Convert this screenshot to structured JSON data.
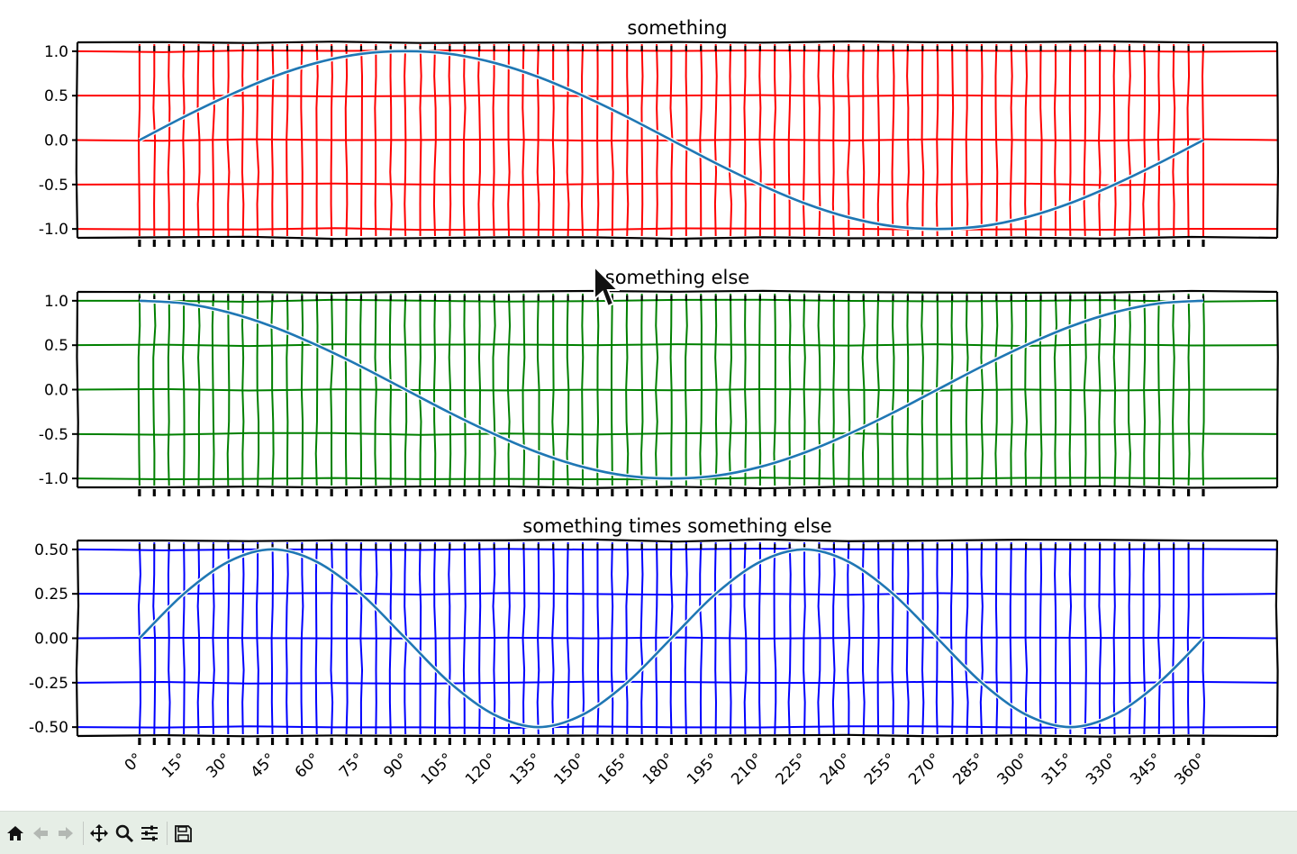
{
  "chart_data": [
    {
      "type": "line",
      "title": "something",
      "x_unit": "degrees",
      "xlim": [
        -21,
        385
      ],
      "ylim": [
        -1.1,
        1.1
      ],
      "yticks": [
        1.0,
        0.5,
        0.0,
        -0.5,
        -1.0
      ],
      "ytick_labels": [
        "1.0",
        "0.5",
        "0.0",
        "-0.5",
        "-1.0"
      ],
      "grid": true,
      "grid_color": "#ff0000",
      "grid_x_step": 5,
      "x_minor_ticks": [
        0,
        5,
        10,
        15,
        20,
        25,
        30,
        35,
        40,
        45,
        50,
        55,
        60,
        65,
        70,
        75,
        80,
        85,
        90,
        95,
        100,
        105,
        110,
        115,
        120,
        125,
        130,
        135,
        140,
        145,
        150,
        155,
        160,
        165,
        170,
        175,
        180,
        185,
        190,
        195,
        200,
        205,
        210,
        215,
        220,
        225,
        230,
        235,
        240,
        245,
        250,
        255,
        260,
        265,
        270,
        275,
        280,
        285,
        290,
        295,
        300,
        305,
        310,
        315,
        320,
        325,
        330,
        335,
        340,
        345,
        350,
        355,
        360
      ],
      "xtick_labels_visible": false,
      "line_color": "#1f77b4",
      "series": [
        {
          "x": [
            0,
            15,
            30,
            45,
            60,
            75,
            90,
            105,
            120,
            135,
            150,
            165,
            180,
            195,
            210,
            225,
            240,
            255,
            270,
            285,
            300,
            315,
            330,
            345,
            360
          ],
          "y": [
            0.0,
            0.26,
            0.5,
            0.71,
            0.87,
            0.97,
            1.0,
            0.97,
            0.87,
            0.71,
            0.5,
            0.26,
            0.0,
            -0.26,
            -0.5,
            -0.71,
            -0.87,
            -0.97,
            -1.0,
            -0.97,
            -0.87,
            -0.71,
            -0.5,
            -0.26,
            0.0
          ]
        }
      ]
    },
    {
      "type": "line",
      "title": "something else",
      "x_unit": "degrees",
      "xlim": [
        -21,
        385
      ],
      "ylim": [
        -1.1,
        1.1
      ],
      "yticks": [
        1.0,
        0.5,
        0.0,
        -0.5,
        -1.0
      ],
      "ytick_labels": [
        "1.0",
        "0.5",
        "0.0",
        "-0.5",
        "-1.0"
      ],
      "grid": true,
      "grid_color": "#008000",
      "grid_x_step": 5,
      "xtick_labels_visible": false,
      "line_color": "#1f77b4",
      "series": [
        {
          "x": [
            0,
            15,
            30,
            45,
            60,
            75,
            90,
            105,
            120,
            135,
            150,
            165,
            180,
            195,
            210,
            225,
            240,
            255,
            270,
            285,
            300,
            315,
            330,
            345,
            360
          ],
          "y": [
            1.0,
            0.97,
            0.87,
            0.71,
            0.5,
            0.26,
            0.0,
            -0.26,
            -0.5,
            -0.71,
            -0.87,
            -0.97,
            -1.0,
            -0.97,
            -0.87,
            -0.71,
            -0.5,
            -0.26,
            0.0,
            0.26,
            0.5,
            0.71,
            0.87,
            0.97,
            1.0
          ]
        }
      ]
    },
    {
      "type": "line",
      "title": "something times something else",
      "x_unit": "degrees",
      "xlim": [
        -21,
        385
      ],
      "ylim": [
        -0.55,
        0.55
      ],
      "yticks": [
        0.5,
        0.25,
        0.0,
        -0.25,
        -0.5
      ],
      "ytick_labels": [
        "0.50",
        "0.25",
        "0.00",
        "-0.25",
        "-0.50"
      ],
      "grid": true,
      "grid_color": "#0000ff",
      "grid_x_step": 5,
      "xtick_labels_visible": true,
      "xtick_values": [
        0,
        15,
        30,
        45,
        60,
        75,
        90,
        105,
        120,
        135,
        150,
        165,
        180,
        195,
        210,
        225,
        240,
        255,
        270,
        285,
        300,
        315,
        330,
        345,
        360
      ],
      "xtick_labels": [
        "0°",
        "15°",
        "30°",
        "45°",
        "60°",
        "75°",
        "90°",
        "105°",
        "120°",
        "135°",
        "150°",
        "165°",
        "180°",
        "195°",
        "210°",
        "225°",
        "240°",
        "255°",
        "270°",
        "285°",
        "300°",
        "315°",
        "330°",
        "345°",
        "360°"
      ],
      "line_color": "#1f77b4",
      "series": [
        {
          "x": [
            0,
            15,
            30,
            45,
            60,
            75,
            90,
            105,
            120,
            135,
            150,
            165,
            180,
            195,
            210,
            225,
            240,
            255,
            270,
            285,
            300,
            315,
            330,
            345,
            360
          ],
          "y": [
            0.0,
            0.25,
            0.43,
            0.5,
            0.43,
            0.25,
            0.0,
            -0.25,
            -0.43,
            -0.5,
            -0.43,
            -0.25,
            0.0,
            0.25,
            0.43,
            0.5,
            0.43,
            0.25,
            0.0,
            -0.25,
            -0.43,
            -0.5,
            -0.43,
            -0.25,
            0.0
          ]
        }
      ]
    }
  ],
  "toolbar": {
    "buttons": [
      {
        "icon": "home-icon",
        "enabled": true
      },
      {
        "icon": "back-arrow-icon",
        "enabled": false
      },
      {
        "icon": "forward-arrow-icon",
        "enabled": false
      },
      {
        "icon": "pan-move-icon",
        "enabled": true
      },
      {
        "icon": "zoom-magnifier-icon",
        "enabled": true
      },
      {
        "icon": "configure-subplots-icon",
        "enabled": true
      },
      {
        "icon": "save-disk-icon",
        "enabled": true
      }
    ]
  }
}
